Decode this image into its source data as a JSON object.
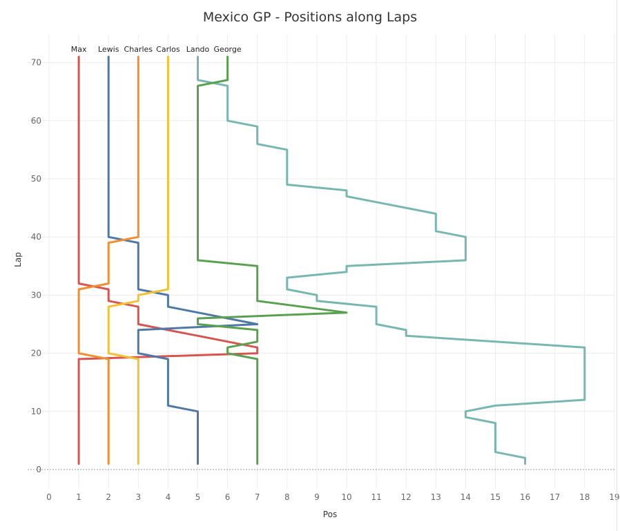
{
  "chart_data": {
    "type": "line",
    "title": "Mexico GP - Positions along Laps",
    "xlabel": "Pos",
    "ylabel": "Lap",
    "xlim": [
      0,
      19
    ],
    "ylim": [
      0,
      70
    ],
    "x_ticks": [
      "0",
      "1",
      "2",
      "3",
      "4",
      "5",
      "6",
      "7",
      "8",
      "9",
      "10",
      "11",
      "12",
      "13",
      "14",
      "15",
      "16",
      "17",
      "18",
      "19"
    ],
    "y_ticks": [
      "0",
      "10",
      "20",
      "30",
      "40",
      "50",
      "60",
      "70"
    ],
    "grid": true,
    "series": [
      {
        "name": "Max",
        "color": "#d9534f",
        "points": [
          [
            1,
            1
          ],
          [
            1,
            19
          ],
          [
            7,
            20
          ],
          [
            7,
            21
          ],
          [
            5,
            23
          ],
          [
            3,
            25
          ],
          [
            3,
            28
          ],
          [
            2,
            29
          ],
          [
            2,
            31
          ],
          [
            1,
            32
          ],
          [
            1,
            71
          ]
        ]
      },
      {
        "name": "Lewis",
        "color": "#4e79a7",
        "points": [
          [
            5,
            1
          ],
          [
            5,
            10
          ],
          [
            4,
            11
          ],
          [
            4,
            19
          ],
          [
            3,
            20
          ],
          [
            3,
            24
          ],
          [
            7,
            25
          ],
          [
            4,
            28
          ],
          [
            4,
            30
          ],
          [
            3,
            31
          ],
          [
            3,
            39
          ],
          [
            2,
            40
          ],
          [
            2,
            71
          ]
        ]
      },
      {
        "name": "Charles",
        "color": "#f28e2b",
        "points": [
          [
            2,
            1
          ],
          [
            2,
            19
          ],
          [
            1,
            20
          ],
          [
            1,
            31
          ],
          [
            2,
            32
          ],
          [
            2,
            39
          ],
          [
            3,
            40
          ],
          [
            3,
            71
          ]
        ]
      },
      {
        "name": "Carlos",
        "color": "#f1c232",
        "points": [
          [
            3,
            1
          ],
          [
            3,
            19
          ],
          [
            2,
            20
          ],
          [
            2,
            28
          ],
          [
            3,
            29
          ],
          [
            3,
            30
          ],
          [
            4,
            31
          ],
          [
            4,
            71
          ]
        ]
      },
      {
        "name": "Lando",
        "color": "#76b7b2",
        "points": [
          [
            16,
            1
          ],
          [
            16,
            2
          ],
          [
            15,
            3
          ],
          [
            15,
            8
          ],
          [
            14,
            9
          ],
          [
            14,
            10
          ],
          [
            15,
            11
          ],
          [
            18,
            12
          ],
          [
            18,
            21
          ],
          [
            12,
            23
          ],
          [
            12,
            24
          ],
          [
            11,
            25
          ],
          [
            11,
            26
          ],
          [
            11,
            28
          ],
          [
            9,
            29
          ],
          [
            9,
            30
          ],
          [
            8,
            31
          ],
          [
            8,
            33
          ],
          [
            10,
            34
          ],
          [
            10,
            35
          ],
          [
            14,
            36
          ],
          [
            14,
            40
          ],
          [
            13,
            41
          ],
          [
            13,
            44
          ],
          [
            10,
            47
          ],
          [
            10,
            48
          ],
          [
            8,
            49
          ],
          [
            8,
            55
          ],
          [
            7,
            56
          ],
          [
            7,
            59
          ],
          [
            6,
            60
          ],
          [
            6,
            66
          ],
          [
            5,
            67
          ],
          [
            5,
            71
          ]
        ]
      },
      {
        "name": "George",
        "color": "#59a14f",
        "points": [
          [
            7,
            1
          ],
          [
            7,
            19
          ],
          [
            6,
            20
          ],
          [
            6,
            21
          ],
          [
            7,
            22
          ],
          [
            7,
            24
          ],
          [
            5,
            25
          ],
          [
            5,
            26
          ],
          [
            10,
            27
          ],
          [
            7,
            29
          ],
          [
            7,
            35
          ],
          [
            5,
            36
          ],
          [
            5,
            66
          ],
          [
            6,
            67
          ],
          [
            6,
            71
          ]
        ]
      }
    ]
  }
}
